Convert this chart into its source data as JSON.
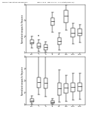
{
  "fig_background": "#ffffff",
  "header_left": "Human Applications Randomizes",
  "header_right": "May 2, 2014   May 24 of 27   U.S. Patent/Claim: N/A",
  "plot1": {
    "ylabel": "Normalized nonspecific Response",
    "xlabel": "siRNA modification format",
    "xlabel_sub": "STDEV: 1.081",
    "ylim": [
      1.0,
      4.0
    ],
    "yticks": [
      1,
      2,
      3,
      4
    ],
    "categories": [
      "RNA",
      "A",
      "B",
      "AB",
      "ABi",
      "ABm",
      "ABCD",
      "ABCE"
    ],
    "boxes": [
      {
        "q1": 1.55,
        "median": 1.65,
        "q3": 1.78,
        "whislo": 1.3,
        "whishi": 2.0,
        "fliers": []
      },
      {
        "q1": 1.3,
        "median": 1.42,
        "q3": 1.58,
        "whislo": 1.08,
        "whishi": 1.8,
        "fliers": [
          2.05
        ]
      },
      {
        "q1": 1.18,
        "median": 1.32,
        "q3": 1.5,
        "whislo": 1.02,
        "whishi": 1.68,
        "fliers": []
      },
      {
        "q1": 2.72,
        "median": 2.95,
        "q3": 3.18,
        "whislo": 2.28,
        "whishi": 3.52,
        "fliers": []
      },
      {
        "q1": 1.52,
        "median": 1.7,
        "q3": 1.92,
        "whislo": 1.18,
        "whishi": 2.22,
        "fliers": []
      },
      {
        "q1": 2.88,
        "median": 3.28,
        "q3": 3.65,
        "whislo": 2.38,
        "whishi": 4.0,
        "fliers": []
      },
      {
        "q1": 1.98,
        "median": 2.22,
        "q3": 2.52,
        "whislo": 1.55,
        "whishi": 2.82,
        "fliers": []
      },
      {
        "q1": 2.05,
        "median": 2.25,
        "q3": 2.48,
        "whislo": 1.62,
        "whishi": 2.75,
        "fliers": []
      }
    ]
  },
  "plot2": {
    "ylabel": "Normalized nonspecific Response",
    "xlabel": "siRNA modification format",
    "xlabel_sub": "STDEV: 1.081",
    "ylim": [
      0.0,
      4.0
    ],
    "yticks": [
      0,
      1,
      2,
      3,
      4
    ],
    "categories": [
      "RNA",
      "A",
      "B",
      "AB",
      "ABi",
      "ABm",
      "ABCD",
      "ABCE"
    ],
    "boxes": [
      {
        "q1": 0.18,
        "median": 0.3,
        "q3": 0.48,
        "whislo": 0.05,
        "whishi": 0.7,
        "fliers": []
      },
      {
        "q1": 1.42,
        "median": 1.88,
        "q3": 2.28,
        "whislo": 0.82,
        "whishi": 4.12,
        "fliers": []
      },
      {
        "q1": 1.35,
        "median": 1.82,
        "q3": 2.18,
        "whislo": 0.65,
        "whishi": 4.28,
        "fliers": []
      },
      {
        "q1": 0.12,
        "median": 0.22,
        "q3": 0.32,
        "whislo": 0.04,
        "whishi": 0.52,
        "fliers": []
      },
      {
        "q1": 0.78,
        "median": 1.32,
        "q3": 1.82,
        "whislo": 0.18,
        "whishi": 2.88,
        "fliers": []
      },
      {
        "q1": 0.95,
        "median": 1.38,
        "q3": 1.72,
        "whislo": 0.28,
        "whishi": 2.45,
        "fliers": []
      },
      {
        "q1": 1.05,
        "median": 1.48,
        "q3": 1.78,
        "whislo": 0.38,
        "whishi": 2.58,
        "fliers": []
      },
      {
        "q1": 1.12,
        "median": 1.52,
        "q3": 1.82,
        "whislo": 0.42,
        "whishi": 2.62,
        "fliers": []
      }
    ]
  }
}
